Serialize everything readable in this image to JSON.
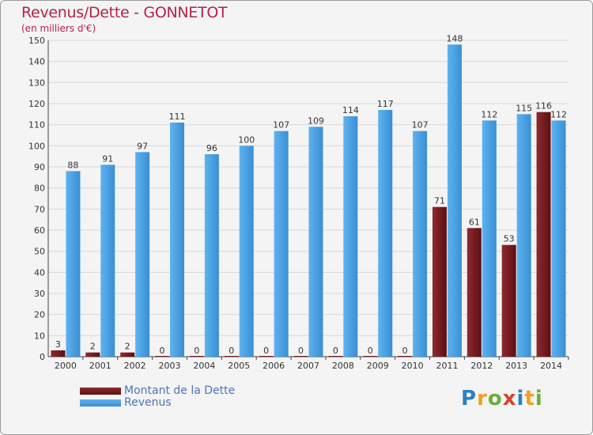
{
  "title": "Revenus/Dette - GONNETOT",
  "subtitle": "(en milliers d'€)",
  "brand": {
    "letters": [
      {
        "ch": "P",
        "color": "#2f7fc1"
      },
      {
        "ch": "r",
        "color": "#f0a020"
      },
      {
        "ch": "o",
        "color": "#6cae3a"
      },
      {
        "ch": "x",
        "color": "#d2452c"
      },
      {
        "ch": "i",
        "color": "#2f7fc1"
      },
      {
        "ch": "t",
        "color": "#f0a020"
      },
      {
        "ch": "i",
        "color": "#6cae3a"
      }
    ]
  },
  "chart_data": {
    "type": "bar",
    "title": "Revenus/Dette - GONNETOT",
    "subtitle": "(en milliers d'€)",
    "categories": [
      "2000",
      "2001",
      "2002",
      "2003",
      "2004",
      "2005",
      "2006",
      "2007",
      "2008",
      "2009",
      "2010",
      "2011",
      "2012",
      "2013",
      "2014"
    ],
    "series": [
      {
        "name": "Montant de la Dette",
        "color": "#7a1a1e",
        "values": [
          3,
          2,
          2,
          0,
          0,
          0,
          0,
          0,
          0,
          0,
          0,
          71,
          61,
          53,
          116
        ]
      },
      {
        "name": "Revenus",
        "color": "#4aa0e0",
        "values": [
          88,
          91,
          97,
          111,
          96,
          100,
          107,
          109,
          114,
          117,
          107,
          148,
          112,
          115,
          112
        ]
      }
    ],
    "ylim": [
      0,
      150
    ],
    "yticks": [
      0,
      10,
      20,
      30,
      40,
      50,
      60,
      70,
      80,
      90,
      100,
      110,
      120,
      130,
      140,
      150
    ],
    "grid": true,
    "legend": "bottom-left"
  }
}
